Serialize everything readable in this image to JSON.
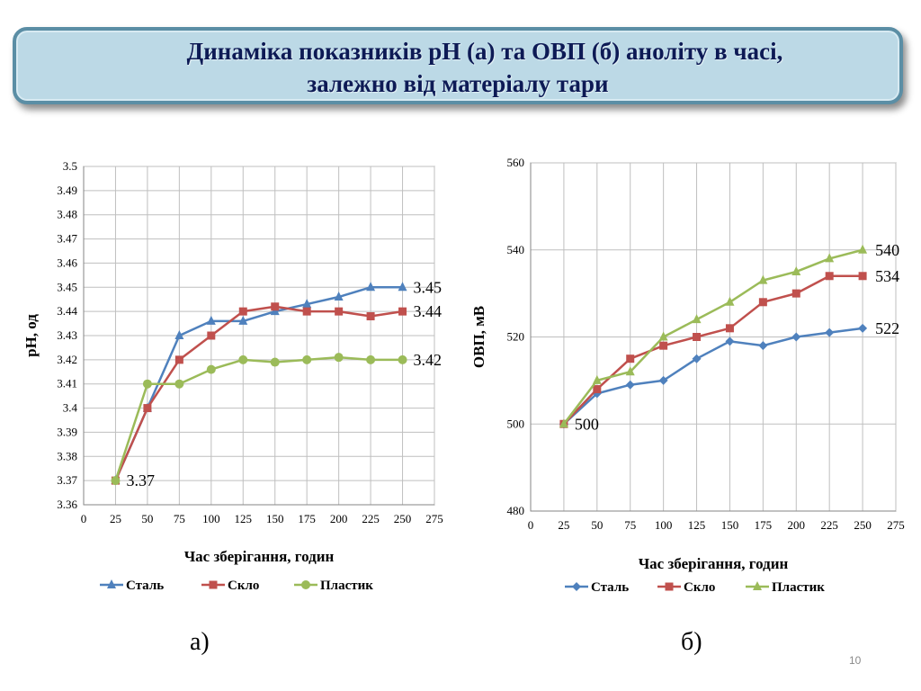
{
  "title": {
    "line1": "Динаміка показників рН (а)  та ОВП (б) аноліту в часі,",
    "line2": "залежно від матеріалу тари"
  },
  "panel_labels": {
    "a": "а)",
    "b": "б)"
  },
  "page_number": "10",
  "colors": {
    "steel_a": "#4f81bd",
    "glass": "#c0504d",
    "plastic": "#9bbb59",
    "steel_b": "#4f81bd",
    "grid": "#bfbfbf",
    "axis": "#868686"
  },
  "chart_data": [
    {
      "id": "a",
      "type": "line",
      "xlabel": "Час зберігання, годин",
      "ylabel": "рН, од",
      "xlim": [
        0,
        275
      ],
      "ylim": [
        3.36,
        3.5
      ],
      "xticks": [
        "0",
        "25",
        "50",
        "75",
        "100",
        "125",
        "150",
        "175",
        "200",
        "225",
        "250",
        "275"
      ],
      "yticks": [
        "3.36",
        "3.37",
        "3.38",
        "3.39",
        "3.4",
        "3.41",
        "3.42",
        "3.43",
        "3.44",
        "3.45",
        "3.46",
        "3.47",
        "3.48",
        "3.49",
        "3.5"
      ],
      "grid": true,
      "legend_position": "bottom",
      "x": [
        25,
        50,
        75,
        100,
        125,
        150,
        175,
        200,
        225,
        250
      ],
      "series": [
        {
          "name": "Сталь",
          "marker": "triangle",
          "color_key": "steel_a",
          "values": [
            3.37,
            3.4,
            3.43,
            3.436,
            3.436,
            3.44,
            3.443,
            3.446,
            3.45,
            3.45
          ]
        },
        {
          "name": "Скло",
          "marker": "square",
          "color_key": "glass",
          "values": [
            3.37,
            3.4,
            3.42,
            3.43,
            3.44,
            3.442,
            3.44,
            3.44,
            3.438,
            3.44
          ]
        },
        {
          "name": "Пластик",
          "marker": "circle",
          "color_key": "plastic",
          "values": [
            3.37,
            3.41,
            3.41,
            3.416,
            3.42,
            3.419,
            3.42,
            3.421,
            3.42,
            3.42
          ]
        }
      ],
      "annotations": [
        {
          "text": "3.45",
          "x": 250,
          "y": 3.45
        },
        {
          "text": "3.44",
          "x": 250,
          "y": 3.44
        },
        {
          "text": "3.42",
          "x": 250,
          "y": 3.42
        },
        {
          "text": "3.37",
          "x": 25,
          "y": 3.37
        }
      ]
    },
    {
      "id": "b",
      "type": "line",
      "xlabel": "Час зберігання, годин",
      "ylabel": "ОВП, мВ",
      "xlim": [
        0,
        275
      ],
      "ylim": [
        480,
        560
      ],
      "xticks": [
        "0",
        "25",
        "50",
        "75",
        "100",
        "125",
        "150",
        "175",
        "200",
        "225",
        "250",
        "275"
      ],
      "yticks": [
        "480",
        "500",
        "520",
        "540",
        "560"
      ],
      "grid": true,
      "legend_position": "bottom",
      "x": [
        25,
        50,
        75,
        100,
        125,
        150,
        175,
        200,
        225,
        250
      ],
      "series": [
        {
          "name": "Сталь",
          "marker": "diamond",
          "color_key": "steel_b",
          "values": [
            500,
            507,
            509,
            510,
            515,
            519,
            518,
            520,
            521,
            522
          ]
        },
        {
          "name": "Скло",
          "marker": "square",
          "color_key": "glass",
          "values": [
            500,
            508,
            515,
            518,
            520,
            522,
            528,
            530,
            534,
            534
          ]
        },
        {
          "name": "Пластик",
          "marker": "triangle",
          "color_key": "plastic",
          "values": [
            500,
            510,
            512,
            520,
            524,
            528,
            533,
            535,
            538,
            540
          ]
        }
      ],
      "annotations": [
        {
          "text": "540",
          "x": 250,
          "y": 540
        },
        {
          "text": "534",
          "x": 250,
          "y": 534
        },
        {
          "text": "522",
          "x": 250,
          "y": 522
        },
        {
          "text": "500",
          "x": 25,
          "y": 500
        }
      ]
    }
  ]
}
